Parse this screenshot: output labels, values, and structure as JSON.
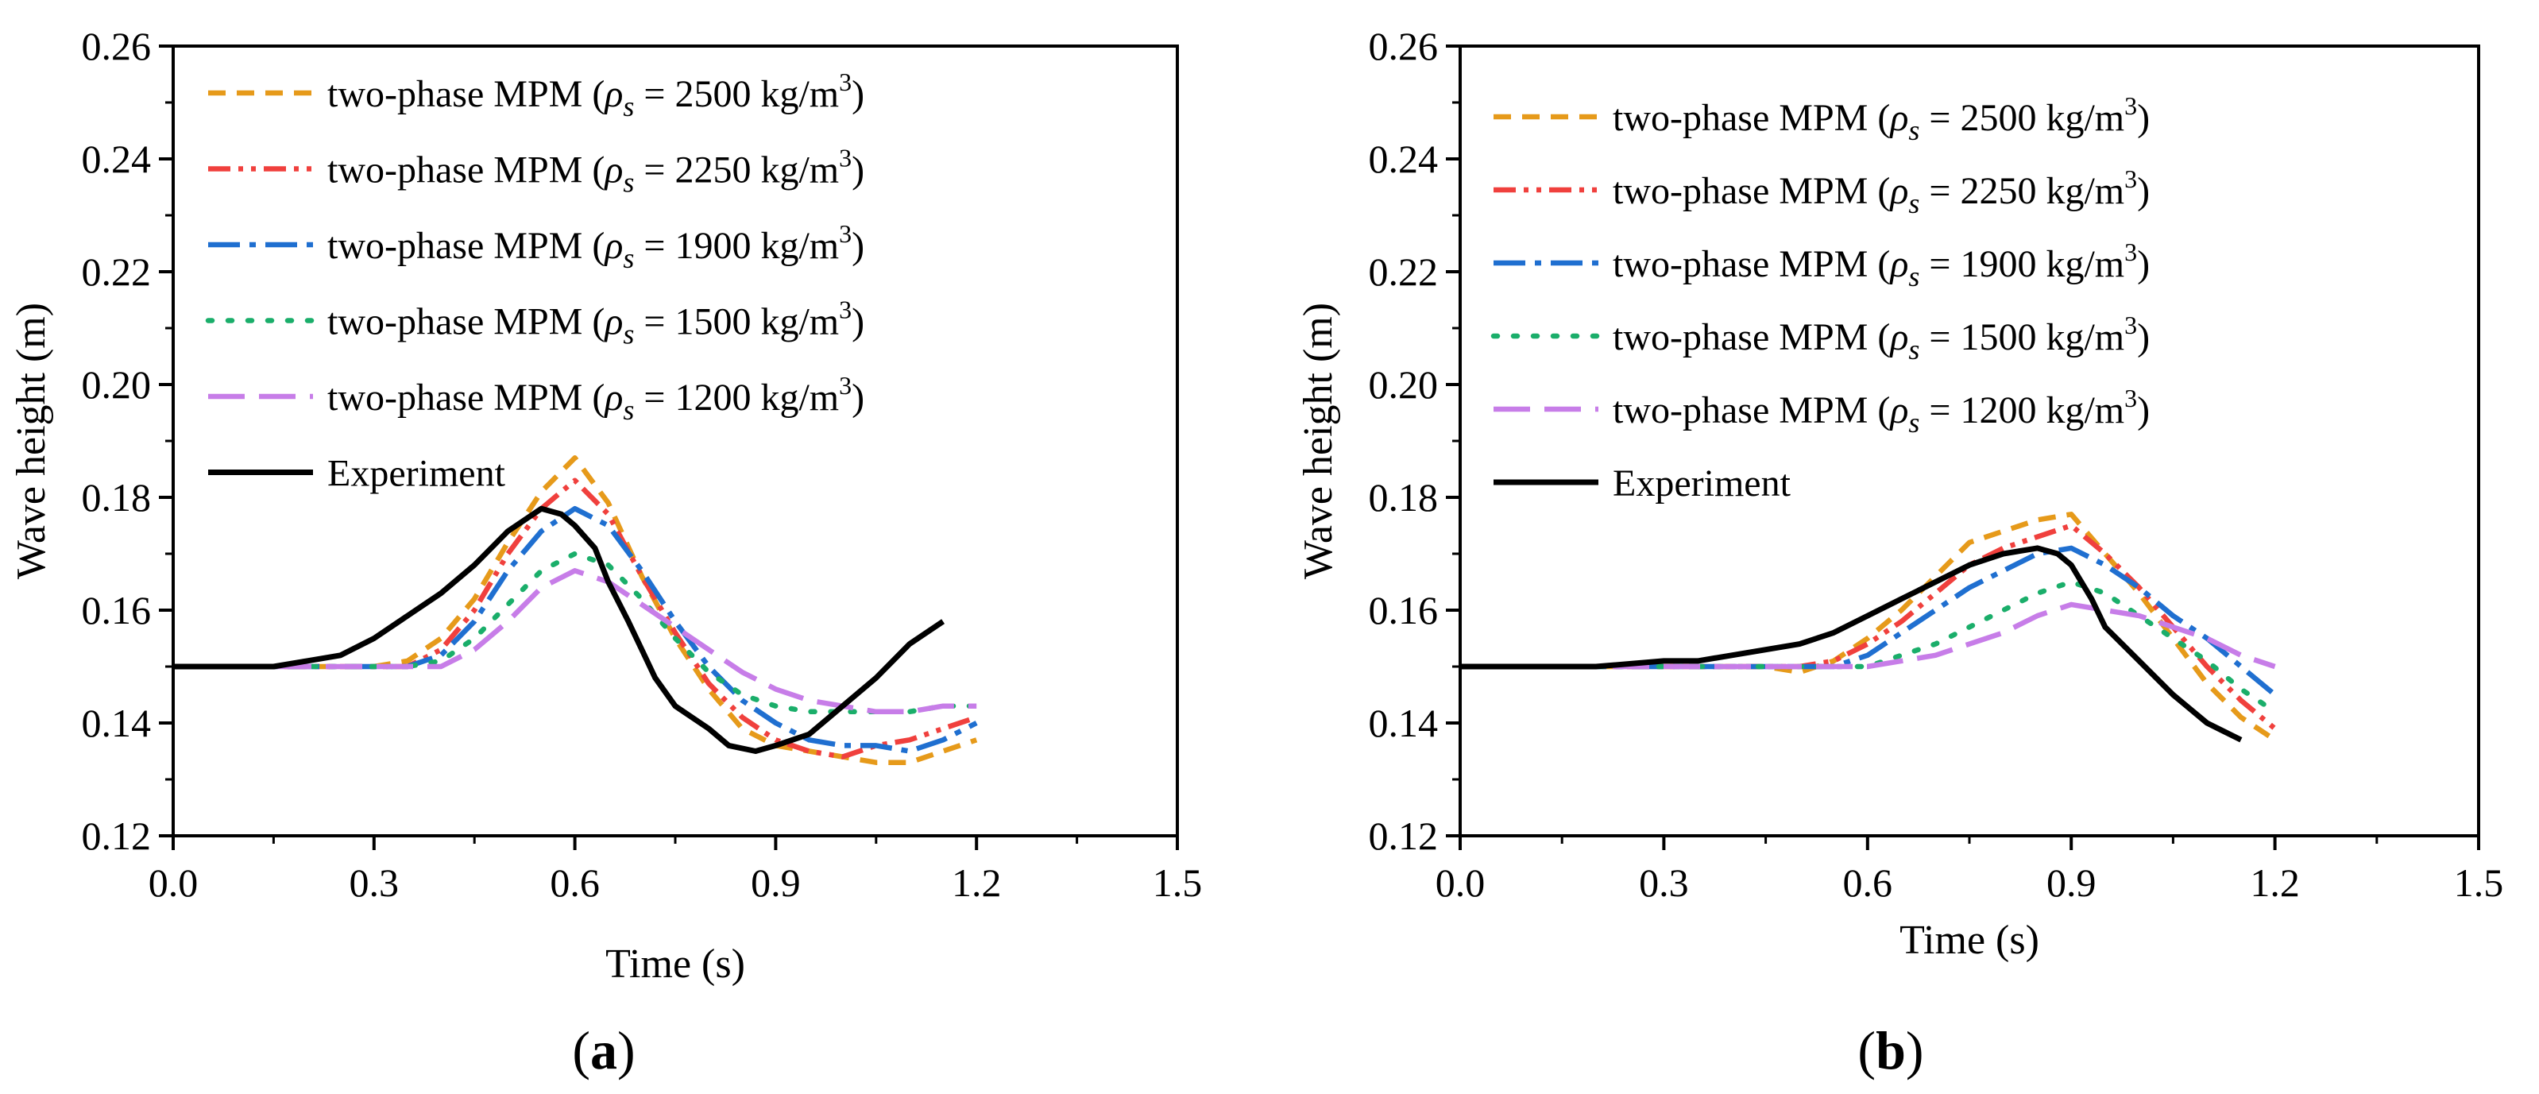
{
  "chart_data": [
    {
      "panel": "a",
      "panel_label": "a",
      "type": "line",
      "xlabel": "Time (s)",
      "ylabel": "Wave height (m)",
      "xlim": [
        0.0,
        1.5
      ],
      "ylim": [
        0.12,
        0.26
      ],
      "xticks": [
        "0.0",
        "0.3",
        "0.6",
        "0.9",
        "1.2",
        "1.5"
      ],
      "yticks": [
        "0.12",
        "0.14",
        "0.16",
        "0.18",
        "0.20",
        "0.22",
        "0.24",
        "0.26"
      ],
      "legend_position": "top-left",
      "series": [
        {
          "name": "two-phase MPM (ρs = 2500 kg/m3)",
          "label_prefix": "two-phase MPM (",
          "label_rho": "ρ",
          "label_sub": "s",
          "label_value": " = 2500 kg/m",
          "label_sup": "3",
          "label_close": ")",
          "color": "#E69A1A",
          "dash": "short-dash",
          "x": [
            0.0,
            0.3,
            0.35,
            0.4,
            0.45,
            0.5,
            0.55,
            0.6,
            0.65,
            0.7,
            0.75,
            0.8,
            0.85,
            0.9,
            0.95,
            1.0,
            1.05,
            1.1,
            1.15,
            1.2
          ],
          "y": [
            0.15,
            0.15,
            0.151,
            0.155,
            0.162,
            0.172,
            0.181,
            0.187,
            0.179,
            0.166,
            0.155,
            0.146,
            0.139,
            0.136,
            0.135,
            0.134,
            0.133,
            0.133,
            0.135,
            0.137
          ]
        },
        {
          "name": "two-phase MPM (ρs = 2250 kg/m3)",
          "label_prefix": "two-phase MPM (",
          "label_rho": "ρ",
          "label_sub": "s",
          "label_value": " = 2250 kg/m",
          "label_sup": "3",
          "label_close": ")",
          "color": "#F0403D",
          "dash": "dash-dot-dot",
          "x": [
            0.0,
            0.35,
            0.4,
            0.45,
            0.5,
            0.55,
            0.6,
            0.65,
            0.7,
            0.75,
            0.8,
            0.85,
            0.9,
            0.95,
            1.0,
            1.05,
            1.1,
            1.15,
            1.2
          ],
          "y": [
            0.15,
            0.15,
            0.153,
            0.16,
            0.17,
            0.178,
            0.183,
            0.177,
            0.166,
            0.156,
            0.147,
            0.141,
            0.137,
            0.135,
            0.134,
            0.136,
            0.137,
            0.139,
            0.141
          ]
        },
        {
          "name": "two-phase MPM (ρs = 1900 kg/m3)",
          "label_prefix": "two-phase MPM (",
          "label_rho": "ρ",
          "label_sub": "s",
          "label_value": " = 1900 kg/m",
          "label_sup": "3",
          "label_close": ")",
          "color": "#1F6FD0",
          "dash": "dash-dot",
          "x": [
            0.0,
            0.35,
            0.4,
            0.45,
            0.5,
            0.55,
            0.6,
            0.65,
            0.7,
            0.75,
            0.8,
            0.85,
            0.9,
            0.95,
            1.0,
            1.05,
            1.1,
            1.15,
            1.2
          ],
          "y": [
            0.15,
            0.15,
            0.152,
            0.158,
            0.167,
            0.174,
            0.178,
            0.175,
            0.167,
            0.158,
            0.15,
            0.144,
            0.14,
            0.137,
            0.136,
            0.136,
            0.135,
            0.137,
            0.14
          ]
        },
        {
          "name": "two-phase MPM (ρs = 1500 kg/m3)",
          "label_prefix": "two-phase MPM (",
          "label_rho": "ρ",
          "label_sub": "s",
          "label_value": " = 1500 kg/m",
          "label_sup": "3",
          "label_close": ")",
          "color": "#1AAE6A",
          "dash": "dot",
          "x": [
            0.0,
            0.35,
            0.4,
            0.45,
            0.5,
            0.55,
            0.6,
            0.65,
            0.7,
            0.75,
            0.8,
            0.85,
            0.9,
            0.95,
            1.0,
            1.05,
            1.1,
            1.15,
            1.2
          ],
          "y": [
            0.15,
            0.15,
            0.151,
            0.155,
            0.161,
            0.167,
            0.17,
            0.168,
            0.162,
            0.155,
            0.149,
            0.145,
            0.143,
            0.142,
            0.142,
            0.142,
            0.142,
            0.143,
            0.143
          ]
        },
        {
          "name": "two-phase MPM (ρs = 1200 kg/m3)",
          "label_prefix": "two-phase MPM (",
          "label_rho": "ρ",
          "label_sub": "s",
          "label_value": " = 1200 kg/m",
          "label_sup": "3",
          "label_close": ")",
          "color": "#C77DE8",
          "dash": "long-dash",
          "x": [
            0.0,
            0.4,
            0.45,
            0.5,
            0.55,
            0.6,
            0.65,
            0.7,
            0.75,
            0.8,
            0.85,
            0.9,
            0.95,
            1.0,
            1.05,
            1.1,
            1.15,
            1.2
          ],
          "y": [
            0.15,
            0.15,
            0.153,
            0.158,
            0.164,
            0.167,
            0.165,
            0.161,
            0.157,
            0.153,
            0.149,
            0.146,
            0.144,
            0.143,
            0.142,
            0.142,
            0.143,
            0.143
          ]
        },
        {
          "name": "Experiment",
          "label_prefix": "Experiment",
          "color": "#000000",
          "dash": "solid",
          "x": [
            0.0,
            0.15,
            0.2,
            0.25,
            0.3,
            0.35,
            0.4,
            0.45,
            0.5,
            0.55,
            0.58,
            0.6,
            0.63,
            0.65,
            0.68,
            0.7,
            0.72,
            0.75,
            0.8,
            0.83,
            0.87,
            0.9,
            0.95,
            1.0,
            1.05,
            1.1,
            1.15
          ],
          "y": [
            0.15,
            0.15,
            0.151,
            0.152,
            0.155,
            0.159,
            0.163,
            0.168,
            0.174,
            0.178,
            0.177,
            0.175,
            0.171,
            0.165,
            0.158,
            0.153,
            0.148,
            0.143,
            0.139,
            0.136,
            0.135,
            0.136,
            0.138,
            0.143,
            0.148,
            0.154,
            0.158
          ]
        }
      ]
    },
    {
      "panel": "b",
      "panel_label": "b",
      "type": "line",
      "xlabel": "Time (s)",
      "ylabel": "Wave height (m)",
      "xlim": [
        0.0,
        1.5
      ],
      "ylim": [
        0.12,
        0.26
      ],
      "xticks": [
        "0.0",
        "0.3",
        "0.6",
        "0.9",
        "1.2",
        "1.5"
      ],
      "yticks": [
        "0.12",
        "0.14",
        "0.16",
        "0.18",
        "0.20",
        "0.22",
        "0.24",
        "0.26"
      ],
      "legend_position": "top-left",
      "series": [
        {
          "name": "two-phase MPM (ρs = 2500 kg/m3)",
          "label_prefix": "two-phase MPM (",
          "label_rho": "ρ",
          "label_sub": "s",
          "label_value": " = 2500 kg/m",
          "label_sup": "3",
          "label_close": ")",
          "color": "#E69A1A",
          "dash": "short-dash",
          "x": [
            0.0,
            0.45,
            0.5,
            0.55,
            0.6,
            0.65,
            0.7,
            0.75,
            0.8,
            0.85,
            0.9,
            0.95,
            1.0,
            1.05,
            1.1,
            1.15,
            1.2
          ],
          "y": [
            0.15,
            0.15,
            0.149,
            0.151,
            0.155,
            0.16,
            0.166,
            0.172,
            0.174,
            0.176,
            0.177,
            0.17,
            0.163,
            0.155,
            0.147,
            0.141,
            0.137
          ]
        },
        {
          "name": "two-phase MPM (ρs = 2250 kg/m3)",
          "label_prefix": "two-phase MPM (",
          "label_rho": "ρ",
          "label_sub": "s",
          "label_value": " = 2250 kg/m",
          "label_sup": "3",
          "label_close": ")",
          "color": "#F0403D",
          "dash": "dash-dot-dot",
          "x": [
            0.0,
            0.5,
            0.55,
            0.6,
            0.65,
            0.7,
            0.75,
            0.8,
            0.85,
            0.9,
            0.95,
            1.0,
            1.05,
            1.1,
            1.15,
            1.2
          ],
          "y": [
            0.15,
            0.15,
            0.151,
            0.154,
            0.158,
            0.163,
            0.168,
            0.171,
            0.173,
            0.175,
            0.17,
            0.164,
            0.157,
            0.15,
            0.144,
            0.139
          ]
        },
        {
          "name": "two-phase MPM (ρs = 1900 kg/m3)",
          "label_prefix": "two-phase MPM (",
          "label_rho": "ρ",
          "label_sub": "s",
          "label_value": " = 1900 kg/m",
          "label_sup": "3",
          "label_close": ")",
          "color": "#1F6FD0",
          "dash": "dash-dot",
          "x": [
            0.0,
            0.55,
            0.6,
            0.65,
            0.7,
            0.75,
            0.8,
            0.85,
            0.9,
            0.95,
            1.0,
            1.05,
            1.1,
            1.15,
            1.2
          ],
          "y": [
            0.15,
            0.15,
            0.152,
            0.156,
            0.16,
            0.164,
            0.167,
            0.17,
            0.171,
            0.168,
            0.164,
            0.159,
            0.155,
            0.15,
            0.145
          ]
        },
        {
          "name": "two-phase MPM (ρs = 1500 kg/m3)",
          "label_prefix": "two-phase MPM (",
          "label_rho": "ρ",
          "label_sub": "s",
          "label_value": " = 1500 kg/m",
          "label_sup": "3",
          "label_close": ")",
          "color": "#1AAE6A",
          "dash": "dot",
          "x": [
            0.0,
            0.6,
            0.65,
            0.7,
            0.75,
            0.8,
            0.85,
            0.9,
            0.95,
            1.0,
            1.05,
            1.1,
            1.15,
            1.2
          ],
          "y": [
            0.15,
            0.15,
            0.152,
            0.154,
            0.157,
            0.16,
            0.163,
            0.165,
            0.163,
            0.159,
            0.155,
            0.151,
            0.146,
            0.142
          ]
        },
        {
          "name": "two-phase MPM (ρs = 1200 kg/m3)",
          "label_prefix": "two-phase MPM (",
          "label_rho": "ρ",
          "label_sub": "s",
          "label_value": " = 1200 kg/m",
          "label_sup": "3",
          "label_close": ")",
          "color": "#C77DE8",
          "dash": "long-dash",
          "x": [
            0.0,
            0.6,
            0.65,
            0.7,
            0.75,
            0.8,
            0.85,
            0.9,
            0.95,
            1.0,
            1.05,
            1.1,
            1.15,
            1.2
          ],
          "y": [
            0.15,
            0.15,
            0.151,
            0.152,
            0.154,
            0.156,
            0.159,
            0.161,
            0.16,
            0.159,
            0.157,
            0.155,
            0.152,
            0.15
          ]
        },
        {
          "name": "Experiment",
          "label_prefix": "Experiment",
          "color": "#000000",
          "dash": "solid",
          "x": [
            0.0,
            0.2,
            0.3,
            0.35,
            0.4,
            0.45,
            0.5,
            0.55,
            0.6,
            0.65,
            0.7,
            0.75,
            0.8,
            0.85,
            0.88,
            0.9,
            0.93,
            0.95,
            1.0,
            1.05,
            1.1,
            1.15
          ],
          "y": [
            0.15,
            0.15,
            0.151,
            0.151,
            0.152,
            0.153,
            0.154,
            0.156,
            0.159,
            0.162,
            0.165,
            0.168,
            0.17,
            0.171,
            0.17,
            0.168,
            0.162,
            0.157,
            0.151,
            0.145,
            0.14,
            0.137
          ]
        }
      ]
    }
  ]
}
